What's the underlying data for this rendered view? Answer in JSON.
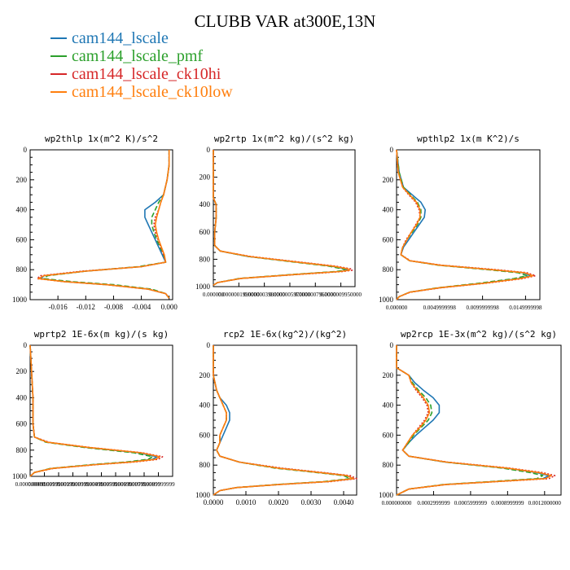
{
  "figure_title": "CLUBB VAR at300E,13N",
  "legend": [
    {
      "label": "cam144_lscale",
      "color": "#1f77b4"
    },
    {
      "label": "cam144_lscale_pmf",
      "color": "#2ca02c"
    },
    {
      "label": "cam144_lscale_ck10hi",
      "color": "#d62728"
    },
    {
      "label": "cam144_lscale_ck10low",
      "color": "#ff7f0e"
    }
  ],
  "chart_data": [
    {
      "type": "line",
      "title": "wp2thlp  1x(m^2 K)/s^2",
      "xlim": [
        -0.02,
        0.0005
      ],
      "ylim": [
        1000,
        0
      ],
      "xticks": [
        -0.016,
        -0.012,
        -0.008,
        -0.004,
        0.0
      ],
      "xtick_labels": [
        "-0.016",
        "-0.012",
        "-0.008",
        "-0.004",
        "0.000"
      ],
      "yticks": [
        0,
        200,
        400,
        600,
        800,
        1000
      ],
      "y": [
        0,
        100,
        200,
        300,
        350,
        400,
        450,
        500,
        550,
        600,
        650,
        700,
        750,
        780,
        810,
        840,
        860,
        880,
        900,
        930,
        960,
        990
      ],
      "series": [
        {
          "name": "cam144_lscale",
          "values": [
            0.0,
            0.0,
            -0.0003,
            -0.0008,
            -0.002,
            -0.0035,
            -0.0035,
            -0.003,
            -0.0025,
            -0.002,
            -0.0015,
            -0.001,
            -0.0005,
            -0.004,
            -0.012,
            -0.018,
            -0.0185,
            -0.015,
            -0.009,
            -0.003,
            -0.0005,
            0.0
          ]
        },
        {
          "name": "cam144_lscale_pmf",
          "values": [
            0.0,
            0.0,
            -0.0003,
            -0.0008,
            -0.0015,
            -0.002,
            -0.0025,
            -0.0025,
            -0.0022,
            -0.0018,
            -0.0013,
            -0.0008,
            -0.0005,
            -0.0045,
            -0.012,
            -0.0175,
            -0.018,
            -0.014,
            -0.008,
            -0.0025,
            -0.0005,
            0.0
          ]
        },
        {
          "name": "cam144_lscale_ck10hi",
          "values": [
            0.0,
            0.0,
            -0.0003,
            -0.0008,
            -0.0012,
            -0.0015,
            -0.002,
            -0.0022,
            -0.002,
            -0.0016,
            -0.0012,
            -0.0008,
            -0.0005,
            -0.004,
            -0.0125,
            -0.0185,
            -0.019,
            -0.015,
            -0.009,
            -0.003,
            -0.0005,
            0.0
          ]
        },
        {
          "name": "cam144_lscale_ck10low",
          "values": [
            0.0,
            0.0,
            -0.0003,
            -0.0008,
            -0.0012,
            -0.0015,
            -0.0018,
            -0.002,
            -0.0018,
            -0.0015,
            -0.0011,
            -0.0007,
            -0.0005,
            -0.004,
            -0.012,
            -0.018,
            -0.0188,
            -0.015,
            -0.009,
            -0.003,
            -0.0005,
            0.0
          ]
        }
      ]
    },
    {
      "type": "line",
      "title": "wp2rtp  1x(m^2 kg)/(s^2 kg)",
      "xlim": [
        0,
        0.0102
      ],
      "ylim": [
        1000,
        0
      ],
      "xtick_labels": [
        "0.000000",
        "0.0000001990000",
        "0.0000003980000",
        "0.0000005970000",
        "0.0000007960000",
        "0.0000009950000"
      ],
      "yticks": [
        0,
        200,
        400,
        600,
        800,
        1000
      ],
      "y": [
        0,
        200,
        350,
        400,
        500,
        600,
        700,
        740,
        780,
        820,
        850,
        870,
        880,
        890,
        910,
        940,
        970,
        990
      ],
      "series": [
        {
          "name": "cam144_lscale",
          "values": [
            0.0,
            0.0,
            0.0,
            0.0002,
            0.0002,
            0.0001,
            0.0001,
            0.0005,
            0.0025,
            0.006,
            0.0085,
            0.0095,
            0.0097,
            0.009,
            0.006,
            0.002,
            0.0003,
            0.0
          ]
        },
        {
          "name": "cam144_lscale_pmf",
          "values": [
            0.0,
            0.0,
            0.0,
            0.0002,
            0.0002,
            0.0001,
            0.0001,
            0.0005,
            0.0025,
            0.0058,
            0.0083,
            0.0093,
            0.0095,
            0.0088,
            0.0058,
            0.0019,
            0.0003,
            0.0
          ]
        },
        {
          "name": "cam144_lscale_ck10hi",
          "values": [
            0.0,
            0.0,
            0.0,
            0.0002,
            0.0002,
            0.0001,
            0.0001,
            0.0005,
            0.0027,
            0.0062,
            0.0088,
            0.0099,
            0.01,
            0.0093,
            0.0062,
            0.002,
            0.0003,
            0.0
          ]
        },
        {
          "name": "cam144_lscale_ck10low",
          "values": [
            0.0,
            0.0,
            0.0,
            0.0002,
            0.0002,
            0.0001,
            0.0001,
            0.0005,
            0.0026,
            0.006,
            0.0086,
            0.0097,
            0.0098,
            0.0091,
            0.006,
            0.002,
            0.0003,
            0.0
          ]
        }
      ]
    },
    {
      "type": "line",
      "title": "wpthlp2  1x(m K^2)/s",
      "xlim": [
        0,
        0.0165
      ],
      "ylim": [
        1000,
        0
      ],
      "xtick_labels": [
        "0.000000",
        "0.0049999998",
        "0.0099999998",
        "0.0149999998"
      ],
      "yticks": [
        0,
        200,
        400,
        600,
        800,
        1000
      ],
      "y": [
        0,
        150,
        250,
        300,
        350,
        400,
        450,
        500,
        550,
        600,
        650,
        700,
        740,
        770,
        800,
        820,
        840,
        860,
        890,
        920,
        950,
        980,
        1000
      ],
      "series": [
        {
          "name": "cam144_lscale",
          "values": [
            0.0,
            0.0003,
            0.0008,
            0.0018,
            0.0028,
            0.0033,
            0.0032,
            0.0026,
            0.002,
            0.0014,
            0.0008,
            0.0005,
            0.0015,
            0.005,
            0.011,
            0.0145,
            0.0155,
            0.014,
            0.01,
            0.005,
            0.0015,
            0.0003,
            0.0
          ]
        },
        {
          "name": "cam144_lscale_pmf",
          "values": [
            0.0,
            0.0003,
            0.0008,
            0.0016,
            0.0024,
            0.0028,
            0.0028,
            0.0024,
            0.0018,
            0.0012,
            0.0007,
            0.0005,
            0.0015,
            0.0048,
            0.0105,
            0.014,
            0.015,
            0.0135,
            0.0095,
            0.0048,
            0.0015,
            0.0003,
            0.0
          ]
        },
        {
          "name": "cam144_lscale_ck10hi",
          "values": [
            0.0,
            0.0002,
            0.0007,
            0.0014,
            0.0022,
            0.0026,
            0.0027,
            0.0022,
            0.0017,
            0.0011,
            0.0007,
            0.0005,
            0.0016,
            0.0052,
            0.0115,
            0.015,
            0.016,
            0.0145,
            0.0103,
            0.0052,
            0.0016,
            0.0003,
            0.0
          ]
        },
        {
          "name": "cam144_lscale_ck10low",
          "values": [
            0.0,
            0.0002,
            0.0007,
            0.0015,
            0.0023,
            0.0027,
            0.0027,
            0.0023,
            0.0017,
            0.0012,
            0.0007,
            0.0005,
            0.0015,
            0.005,
            0.011,
            0.0147,
            0.0157,
            0.0142,
            0.0101,
            0.005,
            0.0015,
            0.0003,
            0.0
          ]
        }
      ]
    },
    {
      "type": "line",
      "title": "wprtp2  1E-6x(m kg)/(s kg)",
      "xlim": [
        0,
        0.0099
      ],
      "ylim": [
        1000,
        0
      ],
      "xtick_labels": [
        "0.000000000",
        "0.0009999999",
        "0.0019999999",
        "0.0029999999",
        "0.0039999999",
        "0.0049999999",
        "0.0059999999",
        "0.0069999999",
        "0.0079999999",
        "0.0089999999"
      ],
      "yticks": [
        0,
        200,
        400,
        600,
        800,
        1000
      ],
      "y": [
        0,
        200,
        400,
        600,
        700,
        740,
        780,
        820,
        850,
        870,
        890,
        910,
        940,
        970,
        1000
      ],
      "series": [
        {
          "name": "cam144_lscale",
          "values": [
            0.0,
            0.0001,
            0.0002,
            0.0002,
            0.0003,
            0.0012,
            0.004,
            0.0075,
            0.0088,
            0.0085,
            0.007,
            0.0045,
            0.0015,
            0.0003,
            0.0
          ]
        },
        {
          "name": "cam144_lscale_pmf",
          "values": [
            0.0,
            0.0001,
            0.0002,
            0.0002,
            0.0003,
            0.0011,
            0.0038,
            0.0072,
            0.0085,
            0.0082,
            0.0067,
            0.0043,
            0.0014,
            0.0003,
            0.0
          ]
        },
        {
          "name": "cam144_lscale_ck10hi",
          "values": [
            0.0,
            0.0001,
            0.0002,
            0.0002,
            0.0003,
            0.0013,
            0.0042,
            0.0078,
            0.0092,
            0.0089,
            0.0073,
            0.0047,
            0.0016,
            0.0003,
            0.0
          ]
        },
        {
          "name": "cam144_lscale_ck10low",
          "values": [
            0.0,
            0.0001,
            0.0002,
            0.0002,
            0.0003,
            0.0012,
            0.0041,
            0.0077,
            0.009,
            0.0087,
            0.0071,
            0.0046,
            0.0015,
            0.0003,
            0.0
          ]
        }
      ]
    },
    {
      "type": "line",
      "title": "rcp2  1E-6x(kg^2)/(kg^2)",
      "xlim": [
        0,
        0.0044
      ],
      "ylim": [
        1000,
        0
      ],
      "xticks": [
        0.0,
        0.001,
        0.002,
        0.003,
        0.004
      ],
      "xtick_labels": [
        "0.0000",
        "0.0010",
        "0.0020",
        "0.0030",
        "0.0040"
      ],
      "yticks": [
        0,
        200,
        400,
        600,
        800,
        1000
      ],
      "y": [
        0,
        200,
        300,
        350,
        400,
        450,
        500,
        550,
        600,
        650,
        700,
        740,
        780,
        820,
        850,
        870,
        890,
        910,
        930,
        950,
        970,
        1000
      ],
      "series": [
        {
          "name": "cam144_lscale",
          "values": [
            0.0,
            0.0,
            0.0001,
            0.0002,
            0.0004,
            0.0005,
            0.0005,
            0.0004,
            0.0003,
            0.0002,
            0.0001,
            0.0002,
            0.0008,
            0.002,
            0.0033,
            0.0041,
            0.0043,
            0.0035,
            0.002,
            0.0007,
            0.0002,
            0.0
          ]
        },
        {
          "name": "cam144_lscale_pmf",
          "values": [
            0.0,
            0.0,
            0.0001,
            0.0002,
            0.0003,
            0.0004,
            0.0004,
            0.0003,
            0.0002,
            0.0002,
            0.0001,
            0.0002,
            0.0008,
            0.0019,
            0.0032,
            0.004,
            0.0042,
            0.0034,
            0.0019,
            0.0007,
            0.0002,
            0.0
          ]
        },
        {
          "name": "cam144_lscale_ck10hi",
          "values": [
            0.0,
            0.0,
            0.0001,
            0.0002,
            0.0003,
            0.0004,
            0.0004,
            0.0003,
            0.0002,
            0.0002,
            0.0001,
            0.0002,
            0.0008,
            0.0021,
            0.0034,
            0.0042,
            0.0044,
            0.0036,
            0.002,
            0.0007,
            0.0002,
            0.0
          ]
        },
        {
          "name": "cam144_lscale_ck10low",
          "values": [
            0.0,
            0.0,
            0.0001,
            0.0002,
            0.0003,
            0.0004,
            0.0004,
            0.0003,
            0.0002,
            0.0002,
            0.0001,
            0.0002,
            0.0008,
            0.002,
            0.0033,
            0.0041,
            0.0043,
            0.0035,
            0.002,
            0.0007,
            0.0002,
            0.0
          ]
        }
      ]
    },
    {
      "type": "line",
      "title": "wp2rcp  1E-3x(m^2 kg)/(s^2 kg)",
      "xlim": [
        0,
        0.00135
      ],
      "ylim": [
        1000,
        0
      ],
      "xtick_labels": [
        "0.000000000",
        "0.0002999999",
        "0.0005999999",
        "0.0008999999",
        "0.0012000000"
      ],
      "yticks": [
        0,
        200,
        400,
        600,
        800,
        1000
      ],
      "y": [
        0,
        150,
        200,
        250,
        300,
        350,
        400,
        450,
        500,
        550,
        600,
        650,
        700,
        740,
        780,
        820,
        850,
        870,
        890,
        910,
        930,
        960,
        1000
      ],
      "series": [
        {
          "name": "cam144_lscale",
          "values": [
            0.0,
            0.0,
            0.0001,
            0.00015,
            0.00022,
            0.0003,
            0.00035,
            0.00035,
            0.0003,
            0.00023,
            0.00016,
            0.0001,
            5e-05,
            0.0001,
            0.0004,
            0.0009,
            0.00115,
            0.00125,
            0.0012,
            0.0008,
            0.0004,
            0.0001,
            0.0
          ]
        },
        {
          "name": "cam144_lscale_pmf",
          "values": [
            0.0,
            0.0,
            0.0001,
            0.00013,
            0.00018,
            0.00024,
            0.00028,
            0.00029,
            0.00026,
            0.0002,
            0.00014,
            0.0001,
            5e-05,
            0.0001,
            0.0004,
            0.00087,
            0.0011,
            0.0012,
            0.00115,
            0.00077,
            0.00038,
            0.0001,
            0.0
          ]
        },
        {
          "name": "cam144_lscale_ck10hi",
          "values": [
            0.0,
            0.0,
            0.0001,
            0.00012,
            0.00016,
            0.00021,
            0.00025,
            0.00026,
            0.00023,
            0.00018,
            0.00013,
            9e-05,
            5e-05,
            0.0001,
            0.00042,
            0.00093,
            0.0012,
            0.0013,
            0.00125,
            0.00083,
            0.00041,
            0.0001,
            0.0
          ]
        },
        {
          "name": "cam144_lscale_ck10low",
          "values": [
            0.0,
            0.0,
            0.0001,
            0.00012,
            0.00017,
            0.00022,
            0.00026,
            0.00027,
            0.00024,
            0.00019,
            0.00013,
            9e-05,
            5e-05,
            0.0001,
            0.00041,
            0.00091,
            0.00117,
            0.00127,
            0.00122,
            0.00081,
            0.0004,
            0.0001,
            0.0
          ]
        }
      ]
    }
  ]
}
